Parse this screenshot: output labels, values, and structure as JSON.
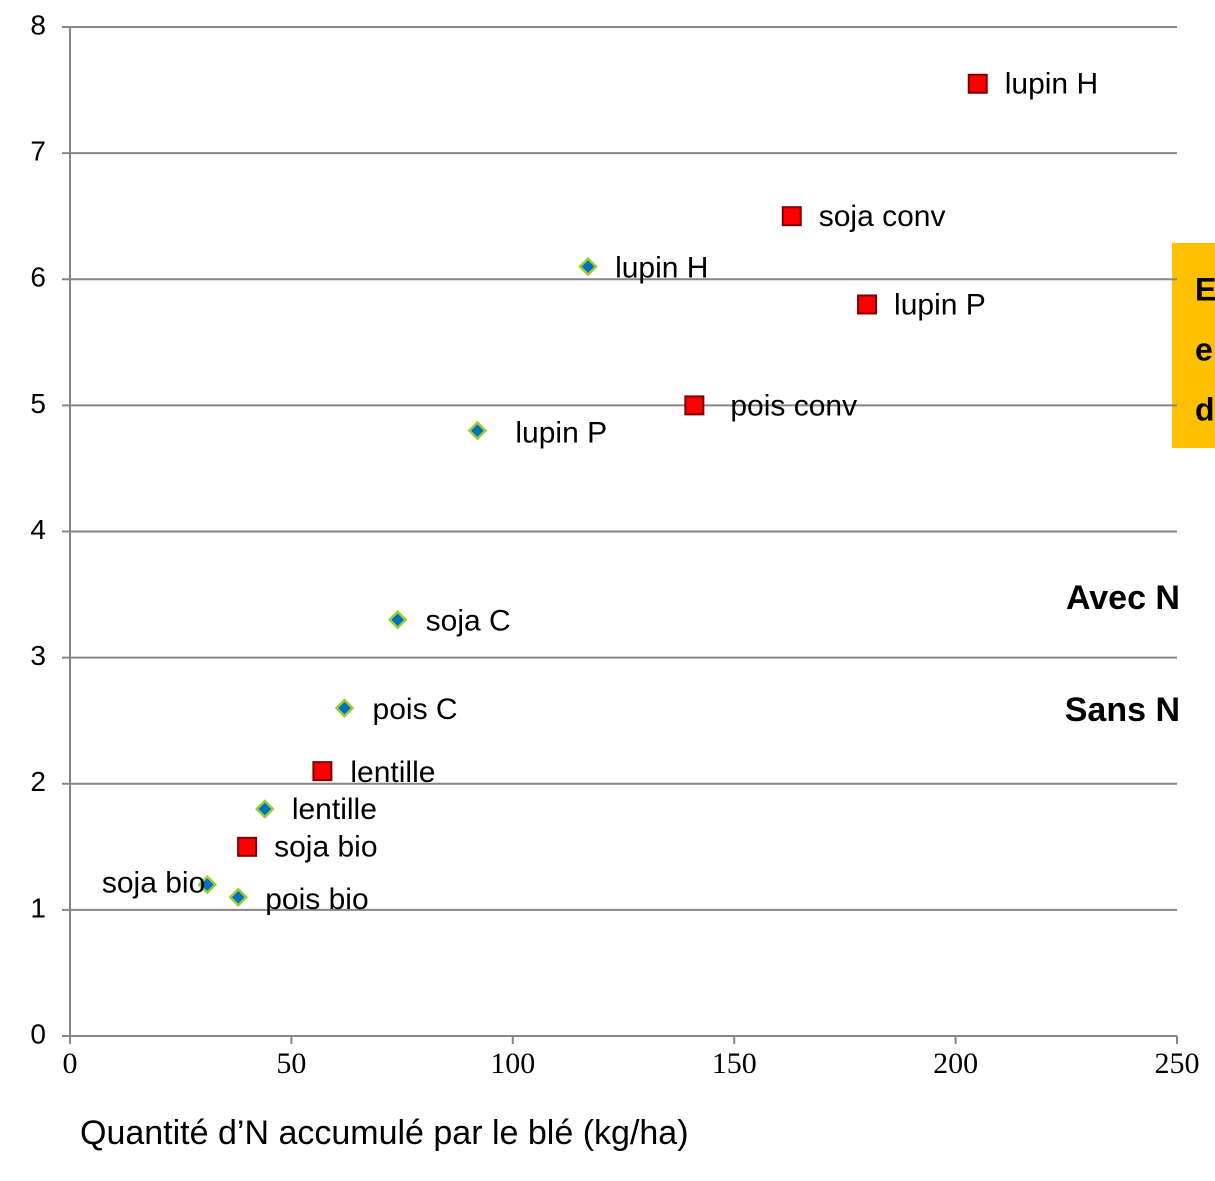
{
  "chart_data": {
    "type": "scatter",
    "x_label": "Quantité d’N accumulé par le blé (kg/ha)",
    "xlim": [
      0,
      250
    ],
    "xticks": [
      0,
      50,
      100,
      150,
      200,
      250
    ],
    "ylim": [
      0,
      8
    ],
    "yticks": [
      0,
      1,
      2,
      3,
      4,
      5,
      6,
      7,
      8
    ],
    "grid": true,
    "series": [
      {
        "name": "Avec N",
        "color": "#ff0000",
        "edge_color": "#7f0000",
        "marker": "square",
        "x": [
          205,
          163,
          180,
          141,
          57,
          40
        ],
        "values": [
          7.55,
          6.5,
          5.8,
          5.0,
          2.1,
          1.5
        ],
        "labels": [
          "lupin H",
          "soja conv",
          "lupin P",
          "pois conv",
          "lentille",
          "soja bio"
        ]
      },
      {
        "name": "Sans N",
        "color": "#0070c0",
        "edge_color": "#9acd32",
        "marker": "diamond",
        "x": [
          117,
          92,
          74,
          62,
          44,
          31,
          38
        ],
        "values": [
          6.1,
          4.8,
          3.3,
          2.6,
          1.8,
          1.2,
          1.1
        ],
        "labels": [
          "lupin H",
          "lupin P",
          "soja C",
          "pois C",
          "lentille",
          "soja bio",
          "pois bio"
        ]
      }
    ],
    "annotation_box": {
      "color": "#ffc000",
      "lines": [
        "E",
        "e",
        "d"
      ]
    }
  }
}
